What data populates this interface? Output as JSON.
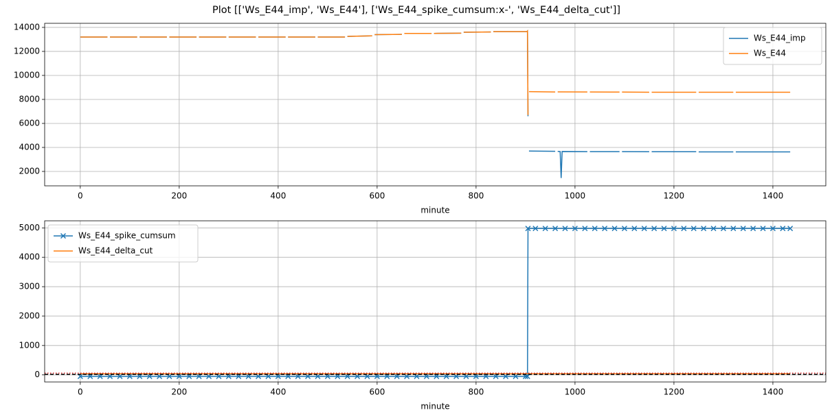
{
  "title": "Plot [['Ws_E44_imp', 'Ws_E44'], ['Ws_E44_spike_cumsum:x-', 'Ws_E44_delta_cut']]",
  "chart_data": [
    {
      "type": "line",
      "xlabel": "minute",
      "grid": true,
      "legend": "upper right",
      "xlim": [
        -72,
        1507
      ],
      "xticks": [
        0,
        200,
        400,
        600,
        800,
        1000,
        1200,
        1400
      ],
      "ylim": [
        800,
        14340
      ],
      "yticks": [
        2000,
        4000,
        6000,
        8000,
        10000,
        12000,
        14000
      ],
      "x": [
        0,
        55,
        58,
        60,
        115,
        118,
        120,
        175,
        178,
        180,
        235,
        238,
        240,
        295,
        298,
        300,
        355,
        358,
        360,
        415,
        418,
        420,
        475,
        478,
        480,
        535,
        538,
        540,
        590,
        592,
        595,
        650,
        652,
        655,
        710,
        712,
        715,
        770,
        772,
        775,
        830,
        832,
        835,
        903,
        904,
        905,
        906,
        907,
        960,
        962,
        965,
        970,
        972,
        974,
        1025,
        1027,
        1030,
        1090,
        1092,
        1095,
        1150,
        1152,
        1155,
        1245,
        1247,
        1250,
        1320,
        1322,
        1325,
        1435
      ],
      "series": [
        {
          "name": "Ws_E44_imp",
          "color": "#1f77b4",
          "values": [
            13200,
            13200,
            null,
            13200,
            13200,
            null,
            13200,
            13200,
            null,
            13200,
            13200,
            null,
            13200,
            13200,
            null,
            13200,
            13200,
            null,
            13200,
            13200,
            null,
            13200,
            13200,
            null,
            13200,
            13200,
            null,
            13250,
            13300,
            null,
            13400,
            13420,
            null,
            13500,
            13500,
            null,
            13500,
            13520,
            null,
            13600,
            13620,
            null,
            13650,
            13650,
            13700,
            6600,
            null,
            3700,
            3680,
            null,
            3670,
            3660,
            1450,
            3660,
            3650,
            null,
            3650,
            3650,
            null,
            3650,
            3640,
            null,
            3640,
            3640,
            null,
            3630,
            3630,
            null,
            3630,
            3630
          ]
        },
        {
          "name": "Ws_E44",
          "color": "#ff7f0e",
          "values": [
            13200,
            13200,
            null,
            13200,
            13200,
            null,
            13200,
            13200,
            null,
            13200,
            13200,
            null,
            13200,
            13200,
            null,
            13200,
            13200,
            null,
            13200,
            13200,
            null,
            13200,
            13200,
            null,
            13200,
            13200,
            null,
            13250,
            13300,
            null,
            13400,
            13420,
            null,
            13500,
            13500,
            null,
            13500,
            13520,
            null,
            13600,
            13620,
            null,
            13650,
            13650,
            13700,
            6700,
            null,
            8650,
            8620,
            null,
            8630,
            8630,
            8630,
            8630,
            8620,
            null,
            8620,
            8610,
            null,
            8610,
            8600,
            null,
            8600,
            8600,
            null,
            8600,
            8600,
            null,
            8600,
            8600
          ]
        }
      ]
    },
    {
      "type": "line",
      "xlabel": "minute",
      "grid": true,
      "legend": "upper left",
      "xlim": [
        -72,
        1507
      ],
      "xticks": [
        0,
        200,
        400,
        600,
        800,
        1000,
        1200,
        1400
      ],
      "ylim": [
        -240,
        5240
      ],
      "yticks": [
        0,
        1000,
        2000,
        3000,
        4000,
        5000
      ],
      "series": [
        {
          "name": "Ws_E44_spike_cumsum",
          "color": "#1f77b4",
          "marker": "x",
          "x": [
            0,
            20,
            40,
            60,
            80,
            100,
            120,
            140,
            160,
            180,
            200,
            220,
            240,
            260,
            280,
            300,
            320,
            340,
            360,
            380,
            400,
            420,
            440,
            460,
            480,
            500,
            520,
            540,
            560,
            580,
            600,
            620,
            640,
            660,
            680,
            700,
            720,
            740,
            760,
            780,
            800,
            820,
            840,
            860,
            880,
            900,
            904,
            905,
            920,
            940,
            960,
            980,
            1000,
            1020,
            1040,
            1060,
            1080,
            1100,
            1120,
            1140,
            1160,
            1180,
            1200,
            1220,
            1240,
            1260,
            1280,
            1300,
            1320,
            1340,
            1360,
            1380,
            1400,
            1420,
            1435
          ],
          "values": [
            -50,
            -50,
            -50,
            -50,
            -50,
            -50,
            -50,
            -50,
            -50,
            -50,
            -50,
            -50,
            -50,
            -50,
            -50,
            -50,
            -50,
            -50,
            -50,
            -50,
            -50,
            -50,
            -50,
            -50,
            -50,
            -50,
            -50,
            -50,
            -50,
            -50,
            -50,
            -50,
            -50,
            -50,
            -50,
            -50,
            -50,
            -50,
            -50,
            -50,
            -50,
            -50,
            -50,
            -50,
            -50,
            -50,
            -50,
            4980,
            4980,
            4980,
            4980,
            4980,
            4980,
            4980,
            4980,
            4980,
            4980,
            4980,
            4980,
            4980,
            4980,
            4980,
            4980,
            4980,
            4980,
            4980,
            4980,
            4980,
            4980,
            4980,
            4980,
            4980,
            4980,
            4980,
            4980
          ]
        },
        {
          "name": "Ws_E44_delta_cut",
          "color": "#ff7f0e",
          "x": [
            0,
            1435
          ],
          "values": [
            40,
            40
          ]
        }
      ],
      "reference_lines": [
        {
          "value": 20,
          "color": "#000000",
          "style": "dashed"
        },
        {
          "value": 60,
          "color": "#d62728",
          "style": "dotted"
        }
      ]
    }
  ]
}
